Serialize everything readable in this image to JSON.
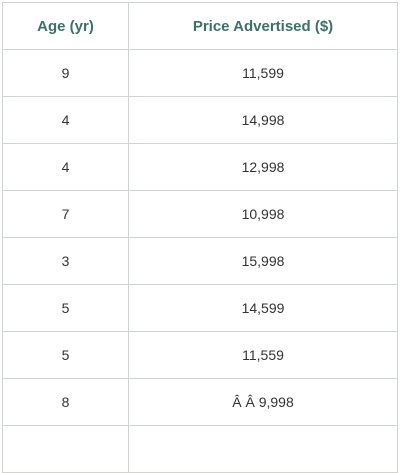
{
  "chart_data": {
    "type": "table",
    "columns": [
      "Age (yr)",
      "Price Advertised ($)"
    ],
    "rows": [
      [
        "9",
        "11,599"
      ],
      [
        "4",
        "14,998"
      ],
      [
        "4",
        "12,998"
      ],
      [
        "7",
        "10,998"
      ],
      [
        "3",
        "15,998"
      ],
      [
        "5",
        "14,599"
      ],
      [
        "5",
        "11,559"
      ],
      [
        "8",
        "Â Â 9,998"
      ],
      [
        "",
        ""
      ]
    ]
  },
  "colors": {
    "header_text": "#3f6f69",
    "border": "#d0d5d2",
    "cell_text": "#333333"
  }
}
